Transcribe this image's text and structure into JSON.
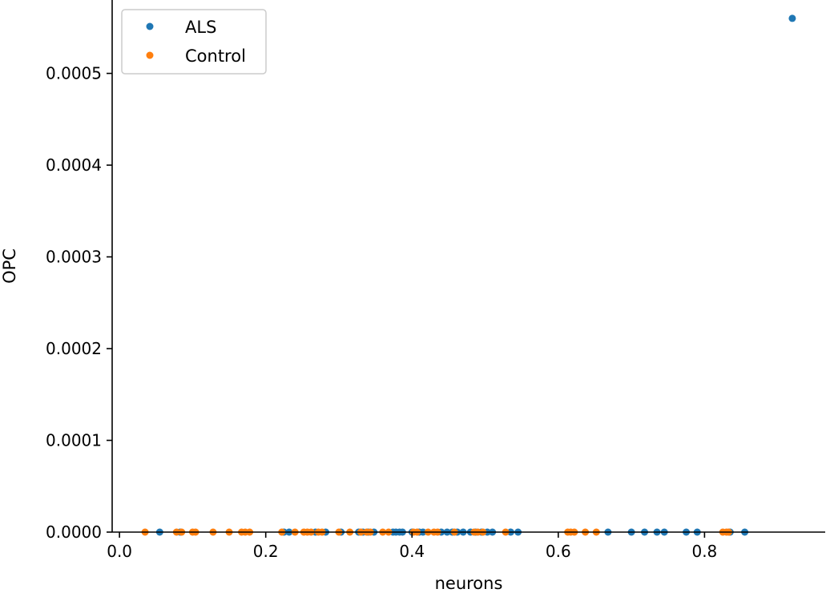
{
  "chart_data": {
    "type": "scatter",
    "xlabel": "neurons",
    "ylabel": "OPC",
    "xlim": [
      -0.01,
      0.965
    ],
    "ylim": [
      0,
      0.00058
    ],
    "x_ticks": [
      "0.0",
      "0.2",
      "0.4",
      "0.6",
      "0.8"
    ],
    "x_tick_values": [
      0.0,
      0.2,
      0.4,
      0.6,
      0.8
    ],
    "y_ticks": [
      "0.0000",
      "0.0001",
      "0.0002",
      "0.0003",
      "0.0004",
      "0.0005"
    ],
    "y_tick_values": [
      0.0,
      0.0001,
      0.0002,
      0.0003,
      0.0004,
      0.0005
    ],
    "grid": false,
    "legend_position": "top-left",
    "series": [
      {
        "name": "ALS",
        "color": "#1f77b4",
        "points": [
          {
            "x": 0.055,
            "y": 0
          },
          {
            "x": 0.083,
            "y": 0
          },
          {
            "x": 0.225,
            "y": 0
          },
          {
            "x": 0.232,
            "y": 0
          },
          {
            "x": 0.268,
            "y": 0
          },
          {
            "x": 0.282,
            "y": 0
          },
          {
            "x": 0.303,
            "y": 0
          },
          {
            "x": 0.327,
            "y": 0
          },
          {
            "x": 0.333,
            "y": 0
          },
          {
            "x": 0.34,
            "y": 0
          },
          {
            "x": 0.348,
            "y": 0
          },
          {
            "x": 0.374,
            "y": 0
          },
          {
            "x": 0.378,
            "y": 0
          },
          {
            "x": 0.383,
            "y": 0
          },
          {
            "x": 0.387,
            "y": 0
          },
          {
            "x": 0.4,
            "y": 0
          },
          {
            "x": 0.41,
            "y": 0
          },
          {
            "x": 0.415,
            "y": 0
          },
          {
            "x": 0.44,
            "y": 0
          },
          {
            "x": 0.448,
            "y": 0
          },
          {
            "x": 0.455,
            "y": 0
          },
          {
            "x": 0.462,
            "y": 0
          },
          {
            "x": 0.47,
            "y": 0
          },
          {
            "x": 0.48,
            "y": 0
          },
          {
            "x": 0.487,
            "y": 0
          },
          {
            "x": 0.495,
            "y": 0
          },
          {
            "x": 0.503,
            "y": 0
          },
          {
            "x": 0.51,
            "y": 0
          },
          {
            "x": 0.535,
            "y": 0
          },
          {
            "x": 0.545,
            "y": 0
          },
          {
            "x": 0.668,
            "y": 0
          },
          {
            "x": 0.7,
            "y": 0
          },
          {
            "x": 0.718,
            "y": 0
          },
          {
            "x": 0.735,
            "y": 0
          },
          {
            "x": 0.745,
            "y": 0
          },
          {
            "x": 0.775,
            "y": 0
          },
          {
            "x": 0.79,
            "y": 0
          },
          {
            "x": 0.835,
            "y": 0
          },
          {
            "x": 0.855,
            "y": 0
          },
          {
            "x": 0.92,
            "y": 0.00056
          }
        ]
      },
      {
        "name": "Control",
        "color": "#ff7f0e",
        "points": [
          {
            "x": 0.035,
            "y": 0
          },
          {
            "x": 0.078,
            "y": 0
          },
          {
            "x": 0.085,
            "y": 0
          },
          {
            "x": 0.1,
            "y": 0
          },
          {
            "x": 0.104,
            "y": 0
          },
          {
            "x": 0.128,
            "y": 0
          },
          {
            "x": 0.15,
            "y": 0
          },
          {
            "x": 0.167,
            "y": 0
          },
          {
            "x": 0.172,
            "y": 0
          },
          {
            "x": 0.178,
            "y": 0
          },
          {
            "x": 0.222,
            "y": 0
          },
          {
            "x": 0.24,
            "y": 0
          },
          {
            "x": 0.252,
            "y": 0
          },
          {
            "x": 0.257,
            "y": 0
          },
          {
            "x": 0.262,
            "y": 0
          },
          {
            "x": 0.272,
            "y": 0
          },
          {
            "x": 0.277,
            "y": 0
          },
          {
            "x": 0.3,
            "y": 0
          },
          {
            "x": 0.315,
            "y": 0
          },
          {
            "x": 0.33,
            "y": 0
          },
          {
            "x": 0.338,
            "y": 0
          },
          {
            "x": 0.343,
            "y": 0
          },
          {
            "x": 0.36,
            "y": 0
          },
          {
            "x": 0.368,
            "y": 0
          },
          {
            "x": 0.402,
            "y": 0
          },
          {
            "x": 0.407,
            "y": 0
          },
          {
            "x": 0.422,
            "y": 0
          },
          {
            "x": 0.43,
            "y": 0
          },
          {
            "x": 0.435,
            "y": 0
          },
          {
            "x": 0.458,
            "y": 0
          },
          {
            "x": 0.485,
            "y": 0
          },
          {
            "x": 0.49,
            "y": 0
          },
          {
            "x": 0.497,
            "y": 0
          },
          {
            "x": 0.528,
            "y": 0
          },
          {
            "x": 0.613,
            "y": 0
          },
          {
            "x": 0.617,
            "y": 0
          },
          {
            "x": 0.622,
            "y": 0
          },
          {
            "x": 0.637,
            "y": 0
          },
          {
            "x": 0.652,
            "y": 0
          },
          {
            "x": 0.825,
            "y": 0
          },
          {
            "x": 0.83,
            "y": 0
          },
          {
            "x": 0.833,
            "y": 0
          }
        ]
      }
    ]
  }
}
